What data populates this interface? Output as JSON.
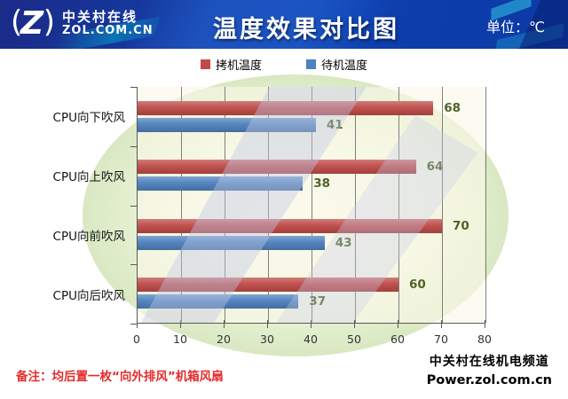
{
  "header": {
    "logo": {
      "glyph": "Z",
      "brand_cn": "中关村在线",
      "brand_en": "ZOL.COM.CN"
    },
    "title": "温度效果对比图",
    "unit_label": "单位：℃"
  },
  "chart_data": {
    "type": "bar",
    "orientation": "horizontal",
    "title": "温度效果对比图",
    "categories": [
      "CPU向下吹风",
      "CPU向上吹风",
      "CPU向前吹风",
      "CPU向后吹风"
    ],
    "series": [
      {
        "name": "拷机温度",
        "color": "#BE4B48",
        "values": [
          68,
          64,
          70,
          60
        ]
      },
      {
        "name": "待机温度",
        "color": "#4F81BD",
        "values": [
          41,
          38,
          43,
          37
        ]
      }
    ],
    "xlim": [
      0,
      80
    ],
    "x_ticks": [
      0,
      10,
      20,
      30,
      40,
      50,
      60,
      70,
      80
    ],
    "grid": true,
    "legend_position": "top",
    "value_labels": true,
    "value_label_color": "#4F6228"
  },
  "footer": {
    "note": "备注：均后置一枚“向外排风”机箱风扇",
    "channel": "中关村在线机电频道",
    "site": "Power.zol.com.cn"
  }
}
